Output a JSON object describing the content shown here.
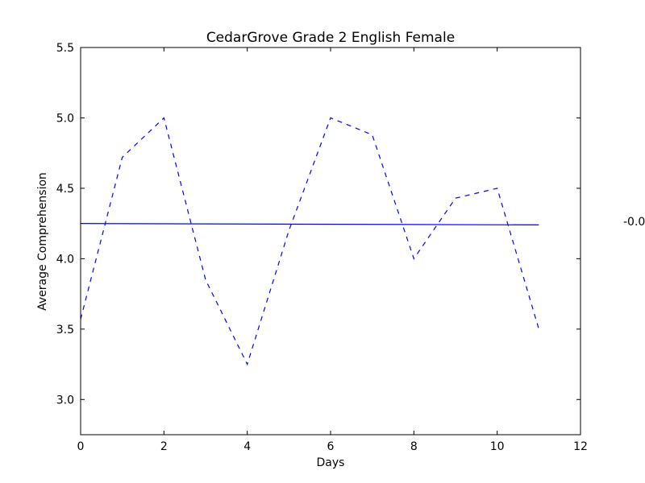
{
  "chart_data": {
    "type": "line",
    "title": "CedarGrove Grade 2 English Female",
    "xlabel": "Days",
    "ylabel": "Average Comprehension",
    "xlim": [
      0,
      12
    ],
    "ylim": [
      2.75,
      5.5
    ],
    "xticks": [
      0,
      2,
      4,
      6,
      8,
      10,
      12
    ],
    "yticks": [
      3.0,
      3.5,
      4.0,
      4.5,
      5.0,
      5.5
    ],
    "xtick_labels": [
      "0",
      "2",
      "4",
      "6",
      "8",
      "10",
      "12"
    ],
    "ytick_labels": [
      "3.0",
      "3.5",
      "4.0",
      "4.5",
      "5.0",
      "5.5"
    ],
    "grid": false,
    "series": [
      {
        "style": "dashed",
        "color": "#0000ff",
        "x": [
          0,
          1,
          2,
          3,
          4,
          5,
          6,
          7,
          8,
          9,
          10,
          11
        ],
        "y": [
          3.57,
          4.72,
          5.0,
          3.85,
          3.25,
          4.2,
          5.0,
          4.88,
          4.0,
          4.43,
          4.5,
          3.5
        ]
      },
      {
        "style": "solid",
        "color": "#0000ff",
        "x": [
          0,
          11
        ],
        "y": [
          4.25,
          4.24
        ]
      }
    ],
    "annotation": "-0.0"
  }
}
